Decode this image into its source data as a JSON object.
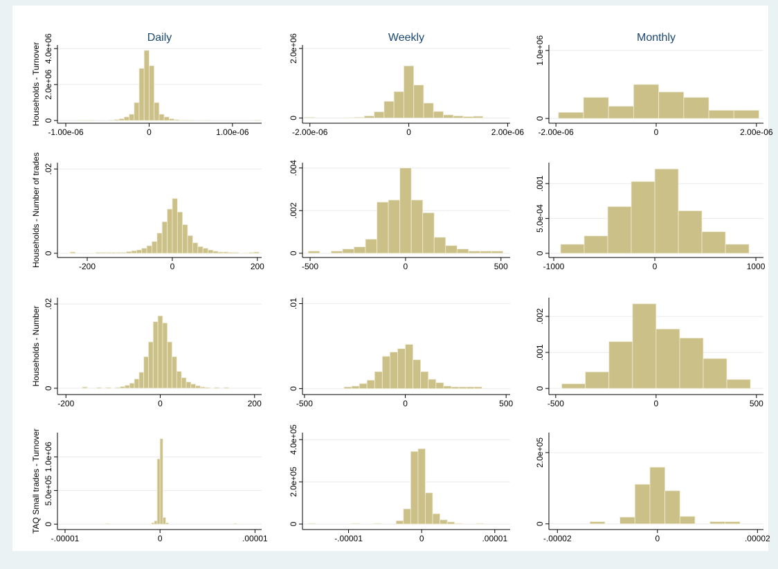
{
  "chart_data": [
    {
      "type": "histogram",
      "title": "Daily",
      "y_label": "Households - Turnover",
      "color": "#cbc188",
      "bins": [
        -8.4e-07,
        -7.8e-07,
        -7.2e-07,
        -6.6e-07,
        -6e-07,
        -5.4e-07,
        -4.8e-07,
        -4.2e-07,
        -3.6e-07,
        -3e-07,
        -2.4e-07,
        -1.8e-07,
        -1.2e-07,
        -6e-08,
        0,
        6e-08,
        1.2e-07,
        1.8e-07,
        2.4e-07,
        3e-07,
        3.6e-07,
        4.2e-07,
        4.8e-07,
        5.4e-07,
        6e-07,
        6.6e-07,
        7.2e-07,
        7.8e-07,
        8.4e-07,
        9e-07,
        9.6e-07,
        1.02e-06,
        1.08e-06,
        1.14e-06,
        1.2e-06,
        1.26e-06,
        1.32e-06
      ],
      "values": [
        20000,
        20000,
        20000,
        0,
        0,
        0,
        30000,
        50000,
        100000,
        200000,
        350000,
        1000000,
        2900000,
        3900000,
        3050000,
        1000000,
        350000,
        200000,
        100000,
        50000,
        30000,
        20000,
        20000,
        0,
        0,
        20000,
        0,
        0,
        0,
        0,
        0,
        0,
        0,
        0,
        0,
        30000
      ],
      "xlim": [
        -1.1e-06,
        1.35e-06
      ],
      "ylim": [
        -150000,
        4200000
      ],
      "xticks": [
        {
          "value": -1e-06,
          "label": "-1.00e-06"
        },
        0,
        {
          "value": 1e-06,
          "label": "1.00e-06"
        }
      ],
      "yticks": [
        0,
        {
          "value": 2000000,
          "label": "2.0e+06"
        },
        {
          "value": 4000000,
          "label": "4.0e+06"
        }
      ],
      "grid": true
    },
    {
      "type": "histogram",
      "title": "Weekly",
      "color": "#cbc188",
      "bins": [
        -2.1e-06,
        -1.9e-06,
        -1.7e-06,
        -1.5e-06,
        -1.3e-06,
        -1.1e-06,
        -9e-07,
        -7e-07,
        -5e-07,
        -3e-07,
        -1e-07,
        1e-07,
        3e-07,
        5e-07,
        7e-07,
        9e-07,
        1.1e-06,
        1.3e-06,
        1.5e-06
      ],
      "values": [
        20000,
        0,
        0,
        0,
        10000,
        20000,
        60000,
        180000,
        480000,
        760000,
        1500000,
        950000,
        430000,
        190000,
        90000,
        60000,
        40000,
        50000
      ],
      "xlim": [
        -2.15e-06,
        2.05e-06
      ],
      "ylim": [
        -150000,
        2100000
      ],
      "xticks": [
        {
          "value": -2e-06,
          "label": "-2.00e-06"
        },
        0,
        {
          "value": 2e-06,
          "label": "2.00e-06"
        }
      ],
      "yticks": [
        0,
        {
          "value": 2000000,
          "label": "2.0e+06"
        }
      ],
      "grid": true
    },
    {
      "type": "histogram",
      "title": "Monthly",
      "color": "#cbc188",
      "bins": [
        -1.95e-06,
        -1.45e-06,
        -9.5e-07,
        -4.5e-07,
        5e-08,
        5.5e-07,
        1.05e-06,
        1.55e-06,
        2.05e-06
      ],
      "values": [
        90000,
        310000,
        180000,
        500000,
        390000,
        310000,
        120000,
        120000
      ],
      "xlim": [
        -2.14e-06,
        2.14e-06
      ],
      "ylim": [
        -70000,
        1080000
      ],
      "xticks": [
        {
          "value": -2e-06,
          "label": "-2.00e-06"
        },
        0,
        {
          "value": 2e-06,
          "label": "2.00e-06"
        }
      ],
      "yticks": [
        0,
        {
          "value": 1000000,
          "label": "1.0e+06"
        }
      ],
      "grid": true
    },
    {
      "type": "histogram",
      "y_label": "Households - Number of trades",
      "color": "#cbc188",
      "bins": [
        -240,
        -228,
        -216,
        -204,
        -192,
        -180,
        -168,
        -156,
        -144,
        -132,
        -120,
        -108,
        -96,
        -84,
        -72,
        -60,
        -48,
        -36,
        -24,
        -12,
        0,
        12,
        24,
        36,
        48,
        60,
        72,
        84,
        96,
        108,
        120,
        132,
        144,
        156,
        168,
        180,
        192,
        204
      ],
      "values": [
        0.0003,
        0,
        0,
        0,
        0,
        0.0002,
        0.0002,
        0.0002,
        0.0002,
        0.0002,
        0.0002,
        0.0004,
        0.0006,
        0.0008,
        0.0012,
        0.0018,
        0.0028,
        0.0048,
        0.0075,
        0.0105,
        0.013,
        0.0098,
        0.0068,
        0.0042,
        0.0025,
        0.0016,
        0.0012,
        0.0008,
        0.0005,
        0.0003,
        0.0003,
        0.0002,
        0.0002,
        0,
        0.0001,
        0.0002,
        0.0003
      ],
      "xlim": [
        -270,
        210
      ],
      "ylim": [
        -0.001,
        0.0215
      ],
      "xticks": [
        -200,
        0,
        200
      ],
      "yticks": [
        0,
        {
          "value": 0.02,
          "label": ".02"
        }
      ],
      "grid": true
    },
    {
      "type": "histogram",
      "color": "#cbc188",
      "bins": [
        -510,
        -450,
        -390,
        -330,
        -270,
        -210,
        -150,
        -90,
        -30,
        30,
        90,
        150,
        210,
        270,
        330,
        390,
        450,
        510
      ],
      "values": [
        0.0001,
        0,
        0.0001,
        0.0002,
        0.0003,
        0.00066,
        0.0024,
        0.0025,
        0.004,
        0.0025,
        0.0019,
        0.00075,
        0.00036,
        0.0002,
        0.0001,
        0.0001,
        0.0001
      ],
      "xlim": [
        -540,
        548
      ],
      "ylim": [
        -0.0002,
        0.00425
      ],
      "xticks": [
        -500,
        0,
        500
      ],
      "yticks": [
        0,
        {
          "value": 0.002,
          "label": ".002"
        },
        {
          "value": 0.004,
          "label": ".004"
        }
      ],
      "grid": true
    },
    {
      "type": "histogram",
      "color": "#cbc188",
      "bins": [
        -932,
        -699,
        -466,
        -233,
        0,
        233,
        466,
        699,
        932
      ],
      "values": [
        0.00013,
        0.00025,
        0.00067,
        0.00103,
        0.00121,
        0.00061,
        0.00031,
        0.00013
      ],
      "xlim": [
        -1048,
        1075
      ],
      "ylim": [
        -6e-05,
        0.0013
      ],
      "xticks": [
        -1000,
        0,
        1000
      ],
      "yticks": [
        0,
        {
          "value": 0.0005,
          "label": "5.0e-04"
        },
        {
          "value": 0.001,
          "label": ".001"
        }
      ],
      "grid": true
    },
    {
      "type": "histogram",
      "y_label": "Households - Number",
      "color": "#cbc188",
      "bins": [
        -165,
        -155,
        -145,
        -135,
        -125,
        -115,
        -105,
        -95,
        -85,
        -75,
        -65,
        -55,
        -45,
        -35,
        -25,
        -15,
        -5,
        5,
        15,
        25,
        35,
        45,
        55,
        65,
        75,
        85,
        95,
        105,
        115,
        125,
        135,
        145
      ],
      "values": [
        0.0003,
        0,
        0,
        0.0002,
        0,
        0.0002,
        0,
        0.0002,
        0.0004,
        0.0007,
        0.0012,
        0.0022,
        0.0038,
        0.0075,
        0.011,
        0.0158,
        0.0172,
        0.0155,
        0.011,
        0.0075,
        0.004,
        0.0025,
        0.0015,
        0.001,
        0.0006,
        0.0003,
        0.0002,
        0,
        0.0002,
        0,
        0.0002
      ],
      "xlim": [
        -218,
        215
      ],
      "ylim": [
        -0.0015,
        0.0215
      ],
      "xticks": [
        -200,
        0,
        200
      ],
      "yticks": [
        0,
        {
          "value": 0.02,
          "label": ".02"
        }
      ],
      "grid": true
    },
    {
      "type": "histogram",
      "color": "#cbc188",
      "bins": [
        -304,
        -266,
        -228,
        -190,
        -152,
        -114,
        -76,
        -38,
        0,
        38,
        76,
        114,
        152,
        190,
        228,
        266,
        304,
        342,
        380
      ],
      "values": [
        0.0002,
        0.0003,
        0.0006,
        0.001,
        0.002,
        0.0038,
        0.0043,
        0.0047,
        0.0052,
        0.0034,
        0.002,
        0.0011,
        0.0007,
        0.0003,
        0.0002,
        0.0002,
        0.0002,
        0.0002
      ],
      "xlim": [
        -510,
        520
      ],
      "ylim": [
        -0.0007,
        0.0107
      ],
      "xticks": [
        -500,
        0,
        500
      ],
      "yticks": [
        0,
        {
          "value": 0.01,
          "label": ".01"
        }
      ],
      "grid": true
    },
    {
      "type": "histogram",
      "color": "#cbc188",
      "bins": [
        -470,
        -352.5,
        -235,
        -117.5,
        0,
        117.5,
        235,
        352.5,
        470
      ],
      "values": [
        0.00013,
        0.00046,
        0.0013,
        0.00235,
        0.00165,
        0.0014,
        0.00083,
        0.00025
      ],
      "xlim": [
        -534,
        535
      ],
      "ylim": [
        -0.00017,
        0.00252
      ],
      "xticks": [
        -500,
        0,
        500
      ],
      "yticks": [
        0,
        {
          "value": 0.001,
          "label": ".001"
        },
        {
          "value": 0.002,
          "label": ".002"
        }
      ],
      "grid": true
    },
    {
      "type": "histogram",
      "y_label": "TAQ Small trades - Turnover",
      "color": "#cbc188",
      "bins": [
        -5.7e-06,
        -5.4e-06,
        -5.1e-06,
        -4.8e-06,
        -4.5e-06,
        -4.2e-06,
        -3.9e-06,
        -3.6e-06,
        -3.3e-06,
        -3e-06,
        -2.7e-06,
        -2.4e-06,
        -2.1e-06,
        -1.8e-06,
        -1.5e-06,
        -1.2e-06,
        -9e-07,
        -6e-07,
        -3e-07,
        0,
        3e-07,
        6e-07,
        9e-07,
        1.2e-06,
        1.5e-06,
        1.8e-06,
        2.1e-06,
        2.4e-06,
        2.7e-06,
        3e-06,
        3.3e-06,
        3.6e-06,
        3.9e-06,
        4.2e-06,
        4.5e-06,
        4.8e-06,
        5.1e-06,
        5.4e-06,
        5.7e-06,
        6e-06,
        6.3e-06,
        6.6e-06,
        6.9e-06,
        7.2e-06,
        7.5e-06,
        7.8e-06,
        8.1e-06
      ],
      "values": [
        10000,
        0,
        0,
        0,
        0,
        0,
        0,
        0,
        0,
        0,
        0,
        0,
        0,
        0,
        0,
        0,
        20000,
        50000,
        970000,
        1270000,
        100000,
        20000,
        0,
        0,
        0,
        0,
        0,
        0,
        0,
        0,
        0,
        0,
        0,
        0,
        0,
        0,
        0,
        0,
        0,
        0,
        0,
        0,
        0,
        0,
        0,
        10000
      ],
      "xlim": [
        -1.08e-05,
        1.07e-05
      ],
      "ylim": [
        -80000,
        1360000
      ],
      "xticks": [
        {
          "value": -1e-05,
          "label": "-.00001"
        },
        0,
        {
          "value": 1e-05,
          "label": ".00001"
        }
      ],
      "yticks": [
        0,
        {
          "value": 500000,
          "label": "5.0e+05"
        },
        {
          "value": 1000000,
          "label": "1.0e+06"
        }
      ],
      "grid": true
    },
    {
      "type": "histogram",
      "color": "#cbc188",
      "bins": [
        -1.55e-05,
        -1.45e-05,
        -1.35e-05,
        -1.25e-05,
        -1.15e-05,
        -1.05e-05,
        -9.5e-06,
        -8.5e-06,
        -7.5e-06,
        -6.5e-06,
        -5.5e-06,
        -4.5e-06,
        -3.5e-06,
        -2.5e-06,
        -1.5e-06,
        -5e-07,
        5e-07,
        1.5e-06,
        2.5e-06,
        3.5e-06,
        4.5e-06,
        5.5e-06,
        6.5e-06,
        7.5e-06,
        8.5e-06,
        9.5e-06
      ],
      "values": [
        3000,
        0,
        0,
        0,
        0,
        0,
        3000,
        0,
        0,
        3000,
        0,
        0,
        16000,
        72000,
        344000,
        357000,
        148000,
        49000,
        20000,
        10000,
        3000,
        0,
        0,
        3000,
        0
      ],
      "xlim": [
        -1.63e-05,
        1.21e-05
      ],
      "ylim": [
        -26000,
        433000
      ],
      "xticks": [
        {
          "value": -1e-05,
          "label": "-.00001"
        },
        0,
        {
          "value": 1e-05,
          "label": ".00001"
        }
      ],
      "yticks": [
        0,
        {
          "value": 200000,
          "label": "2.0e+05"
        },
        {
          "value": 400000,
          "label": "4.0e+05"
        }
      ],
      "grid": true
    },
    {
      "type": "histogram",
      "color": "#cbc188",
      "bins": [
        -1.35e-05,
        -1.05e-05,
        -7.5e-06,
        -4.5e-06,
        -1.5e-06,
        1.5e-06,
        4.5e-06,
        7.5e-06,
        1.05e-05,
        1.35e-05,
        1.65e-05
      ],
      "values": [
        6000,
        0,
        19000,
        111000,
        159000,
        93000,
        21000,
        0,
        6000,
        6000
      ],
      "xlim": [
        -2.17e-05,
        2.12e-05
      ],
      "ylim": [
        -16000,
        256000
      ],
      "xticks": [
        {
          "value": -2e-05,
          "label": "-.00002"
        },
        0,
        {
          "value": 2e-05,
          "label": ".00002"
        }
      ],
      "yticks": [
        0,
        {
          "value": 200000,
          "label": "2.0e+05"
        }
      ],
      "grid": true
    }
  ]
}
